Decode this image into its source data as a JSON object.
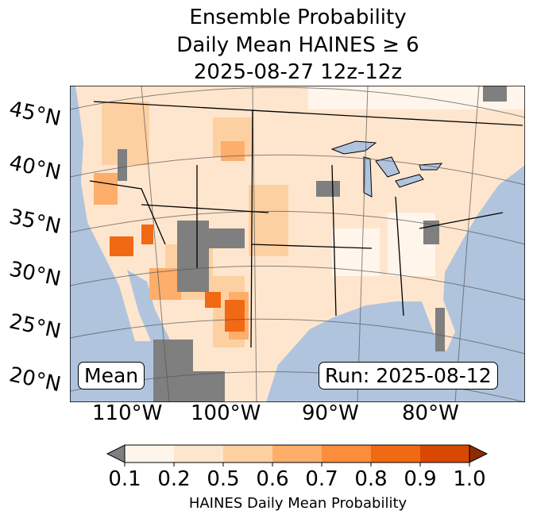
{
  "title": {
    "line1": "Ensemble Probability",
    "line2": "Daily Mean HAINES ≥ 6",
    "line3": "2025-08-27 12z-12z"
  },
  "lat_labels": [
    "45°N",
    "40°N",
    "35°N",
    "30°N",
    "25°N",
    "20°N"
  ],
  "lon_labels": [
    "110°W",
    "100°W",
    "90°W",
    "80°W"
  ],
  "mean_label": "Mean",
  "run_label": "Run: 2025-08-12",
  "colorbar": {
    "label": "HAINES Daily Mean Probability",
    "ticks": [
      "0.1",
      "0.2",
      "0.5",
      "0.6",
      "0.7",
      "0.8",
      "0.9",
      "1.0"
    ],
    "colors": [
      "#fff5eb",
      "#fee6ce",
      "#fdd0a2",
      "#fdae6b",
      "#fd8d3c",
      "#f16913",
      "#d94801"
    ],
    "under_color": "#7f7f7f",
    "over_color": "#8c2d04"
  },
  "colors": {
    "ocean": "#b0c4de",
    "missing": "#7f7f7f"
  }
}
